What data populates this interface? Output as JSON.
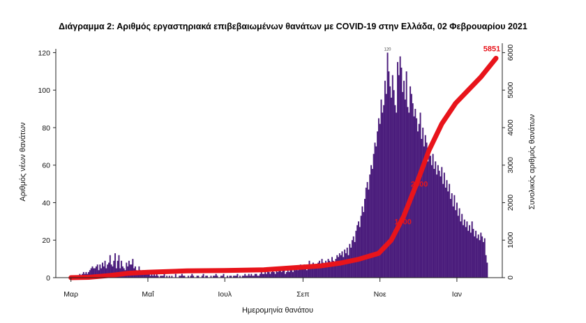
{
  "chart_data": {
    "type": "bar+line",
    "title": "Διάγραμμα 2: Αριθμός εργαστηριακά επιβεβαιωμένων θανάτων με COVID-19 στην Ελλάδα, 02 Φεβρουαρίου 2021",
    "xlabel": "Ημερομηνία θανάτου",
    "ylabel_left": "Αριθμός νέων θανάτων",
    "ylabel_right": "Συνολικός αριθμός θανάτων",
    "y_left_lim": [
      0,
      125
    ],
    "y_left_ticks": [
      "0",
      "20",
      "40",
      "60",
      "80",
      "100",
      "120"
    ],
    "y_right_lim": [
      0,
      6250
    ],
    "y_right_ticks": [
      "0",
      "1000",
      "2000",
      "3000",
      "4000",
      "5000",
      "6000"
    ],
    "x_tick_labels": [
      "Μαρ",
      "Μαΐ",
      "Ιουλ",
      "Σεπ",
      "Νοε",
      "Ιαν"
    ],
    "bar_color": "#4b1d7c",
    "line_color": "#e8141b",
    "bar_series": {
      "name": "Αριθμός νέων θανάτων",
      "x_start": "2020-02-26",
      "daily_values": [
        0,
        0,
        0,
        0,
        1,
        1,
        0,
        1,
        1,
        1,
        0,
        2,
        1,
        2,
        3,
        2,
        3,
        2,
        3,
        4,
        5,
        6,
        5,
        5,
        6,
        7,
        4,
        7,
        5,
        8,
        6,
        9,
        5,
        7,
        8,
        12,
        7,
        6,
        9,
        13,
        5,
        9,
        12,
        5,
        9,
        6,
        5,
        4,
        8,
        6,
        9,
        7,
        7,
        10,
        5,
        6,
        4,
        3,
        6,
        4,
        3,
        4,
        2,
        3,
        4,
        2,
        2,
        1,
        3,
        1,
        2,
        1,
        2,
        1,
        0,
        1,
        1,
        1,
        2,
        0,
        1,
        0,
        1,
        0,
        1,
        0,
        0,
        2,
        0,
        0,
        1,
        1,
        2,
        1,
        1,
        0,
        0,
        1,
        0,
        1,
        2,
        1,
        0,
        0,
        1,
        1,
        0,
        0,
        1,
        2,
        0,
        1,
        1,
        0,
        0,
        1,
        0,
        1,
        1,
        2,
        1,
        0,
        0,
        1,
        1,
        2,
        0,
        0,
        1,
        0,
        1,
        1,
        0,
        1,
        1,
        1,
        2,
        0,
        1,
        0,
        1,
        1,
        2,
        1,
        1,
        2,
        1,
        2,
        1,
        1,
        2,
        2,
        1,
        1,
        2,
        3,
        2,
        2,
        3,
        2,
        4,
        3,
        2,
        3,
        5,
        3,
        2,
        4,
        3,
        5,
        5,
        3,
        4,
        6,
        2,
        3,
        4,
        3,
        5,
        4,
        3,
        6,
        4,
        5,
        4,
        6,
        7,
        5,
        6,
        7,
        5,
        4,
        6,
        9,
        7,
        6,
        8,
        5,
        7,
        6,
        8,
        9,
        7,
        10,
        8,
        6,
        9,
        8,
        10,
        9,
        8,
        11,
        9,
        7,
        10,
        12,
        11,
        13,
        12,
        14,
        11,
        15,
        13,
        16,
        12,
        18,
        16,
        20,
        22,
        19,
        25,
        28,
        30,
        27,
        33,
        38,
        35,
        42,
        48,
        51,
        47,
        55,
        60,
        58,
        66,
        72,
        70,
        78,
        85,
        82,
        95,
        88,
        92,
        105,
        98,
        120,
        110,
        102,
        96,
        108,
        100,
        92,
        88,
        115,
        108,
        118,
        112,
        99,
        105,
        95,
        110,
        91,
        88,
        102,
        98,
        93,
        86,
        90,
        85,
        78,
        82,
        88,
        74,
        80,
        70,
        76,
        72,
        62,
        68,
        65,
        60,
        66,
        58,
        62,
        55,
        60,
        57,
        54,
        59,
        50,
        56,
        48,
        52,
        46,
        50,
        42,
        45,
        38,
        44,
        36,
        40,
        33,
        37,
        30,
        34,
        28,
        31,
        27,
        30,
        25,
        28,
        24,
        30,
        26,
        22,
        25,
        21,
        23,
        20,
        24,
        22,
        19,
        21,
        12,
        8
      ],
      "peak_label": "120"
    },
    "line_series": {
      "name": "Συνολικός αριθμός θανάτων",
      "points": [
        [
          "2020-03-01",
          0
        ],
        [
          "2020-03-15",
          10
        ],
        [
          "2020-04-01",
          60
        ],
        [
          "2020-04-15",
          115
        ],
        [
          "2020-05-01",
          145
        ],
        [
          "2020-06-01",
          180
        ],
        [
          "2020-07-01",
          190
        ],
        [
          "2020-08-01",
          210
        ],
        [
          "2020-09-01",
          280
        ],
        [
          "2020-09-15",
          315
        ],
        [
          "2020-10-01",
          390
        ],
        [
          "2020-10-15",
          490
        ],
        [
          "2020-10-31",
          650
        ],
        [
          "2020-11-10",
          1000
        ],
        [
          "2020-11-20",
          1650
        ],
        [
          "2020-11-30",
          2500
        ],
        [
          "2020-12-10",
          3400
        ],
        [
          "2020-12-20",
          4100
        ],
        [
          "2020-12-31",
          4650
        ],
        [
          "2021-01-10",
          5000
        ],
        [
          "2021-01-20",
          5350
        ],
        [
          "2021-02-01",
          5851
        ]
      ],
      "final_label": "5851",
      "annotations": [
        {
          "date": "2020-11-17",
          "value": 1500,
          "label": "1500"
        },
        {
          "date": "2020-11-30",
          "value": 2500,
          "label": "2500"
        }
      ]
    }
  }
}
